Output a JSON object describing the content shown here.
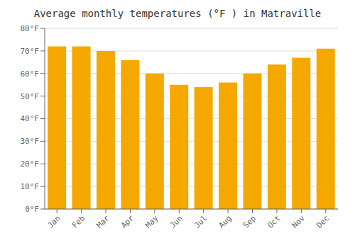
{
  "chart_data": {
    "type": "bar",
    "title": "Average monthly temperatures (°F ) in Matraville",
    "categories": [
      "Jan",
      "Feb",
      "Mar",
      "Apr",
      "May",
      "Jun",
      "Jul",
      "Aug",
      "Sep",
      "Oct",
      "Nov",
      "Dec"
    ],
    "values": [
      72,
      72,
      70,
      66,
      60,
      55,
      54,
      56,
      60,
      64,
      67,
      71
    ],
    "color": "#F5A800",
    "ylim": [
      0,
      80
    ],
    "yticks": [
      {
        "value": 0,
        "label": "0°F"
      },
      {
        "value": 10,
        "label": "10°F"
      },
      {
        "value": 20,
        "label": "20°F"
      },
      {
        "value": 30,
        "label": "30°F"
      },
      {
        "value": 40,
        "label": "40°F"
      },
      {
        "value": 50,
        "label": "50°F"
      },
      {
        "value": 60,
        "label": "60°F"
      },
      {
        "value": 70,
        "label": "70°F"
      },
      {
        "value": 80,
        "label": "80°F"
      }
    ],
    "grid": true
  }
}
